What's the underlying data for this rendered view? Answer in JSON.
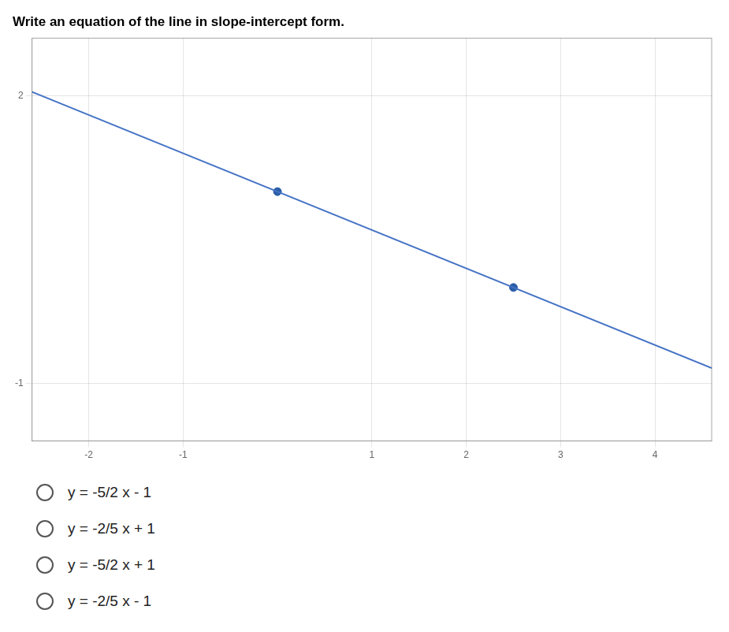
{
  "chart_data": {
    "type": "line",
    "title": "Write an equation of the line in slope-intercept form.",
    "series": [
      {
        "type": "line",
        "color": "#4472C4",
        "x": [
          -2.6,
          4.6
        ],
        "values": [
          2.04,
          -0.84
        ]
      },
      {
        "type": "scatter",
        "color": "#2B5EA7",
        "x": [
          0,
          2.5
        ],
        "values": [
          1,
          0
        ]
      }
    ],
    "xlim": [
      -2.6,
      4.6
    ],
    "ylim": [
      -1.6,
      2.6
    ],
    "xticks": [
      -2,
      -1,
      1,
      2,
      3,
      4
    ],
    "yticks": [
      -1,
      2
    ],
    "grid": true,
    "annotations": [
      "y = -5/2 x - 1",
      "y = -2/5 x + 1",
      "y = -5/2 x + 1",
      "y = -2/5 x - 1"
    ]
  }
}
